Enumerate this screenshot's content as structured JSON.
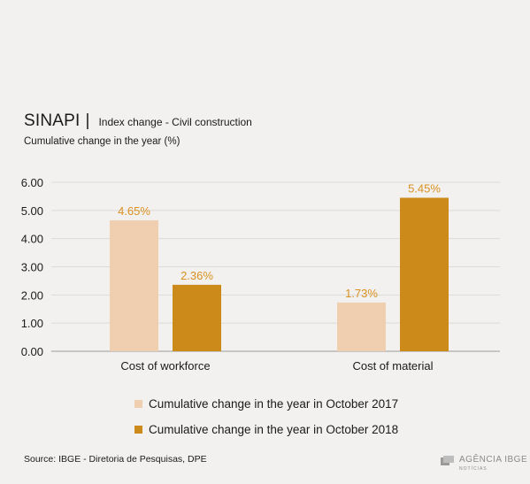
{
  "header": {
    "title": "SINAPI",
    "separator": "|",
    "subtitle": "Index change - Civil construction",
    "unit_label": "Cumulative change in the year (%)"
  },
  "chart_data": {
    "type": "bar",
    "categories": [
      "Cost of workforce",
      "Cost of material"
    ],
    "series": [
      {
        "name": "Cumulative change in the year in October 2017",
        "values": [
          4.65,
          1.73
        ],
        "labels": [
          "4.65%",
          "1.73%"
        ],
        "color": "#f0ceb0"
      },
      {
        "name": "Cumulative change in the year in October 2018",
        "values": [
          2.36,
          5.45
        ],
        "labels": [
          "2.36%",
          "5.45%"
        ],
        "color": "#cc8a1a"
      }
    ],
    "yticks": [
      "0.00",
      "1.00",
      "2.00",
      "3.00",
      "4.00",
      "5.00",
      "6.00"
    ],
    "ylim": [
      0,
      6
    ],
    "grid": true,
    "legend_position": "bottom",
    "label_color": "#d9901f"
  },
  "footer": {
    "source": "Source: IBGE - Diretoria de Pesquisas, DPE",
    "logo_main": "AGÊNCIA IBGE",
    "logo_sub": "NOTÍCIAS"
  }
}
